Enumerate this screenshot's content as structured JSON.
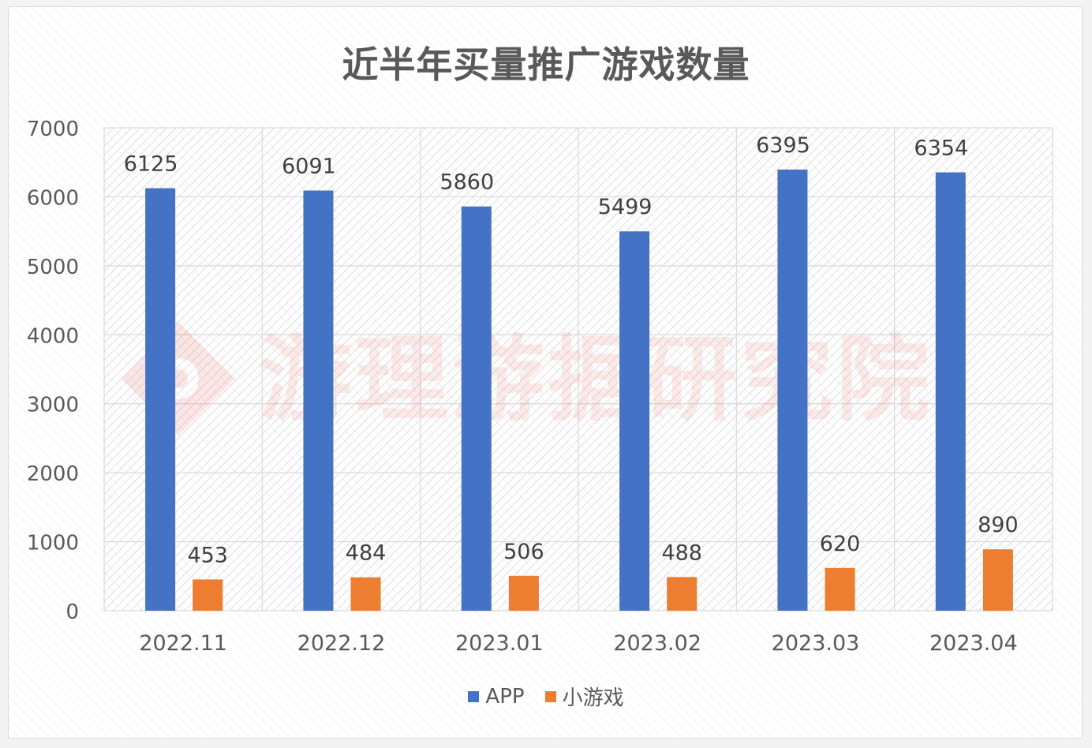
{
  "chart_data": {
    "type": "bar",
    "title": "近半年买量推广游戏数量",
    "categories": [
      "2022.11",
      "2022.12",
      "2023.01",
      "2023.02",
      "2023.03",
      "2023.04"
    ],
    "series": [
      {
        "name": "APP",
        "values": [
          6125,
          6091,
          5860,
          5499,
          6395,
          6354
        ],
        "color": "#4472c4"
      },
      {
        "name": "小游戏",
        "values": [
          453,
          484,
          506,
          488,
          620,
          890
        ],
        "color": "#ed7d31"
      }
    ],
    "ylim": [
      0,
      7000
    ],
    "yticks": [
      0,
      1000,
      2000,
      3000,
      4000,
      5000,
      6000,
      7000
    ],
    "xlabel": "",
    "ylabel": "",
    "grid": true,
    "legend_position": "bottom",
    "data_labels": true
  },
  "watermark": {
    "text": "游理游据研究院",
    "icon": "watermark-logo-icon"
  }
}
